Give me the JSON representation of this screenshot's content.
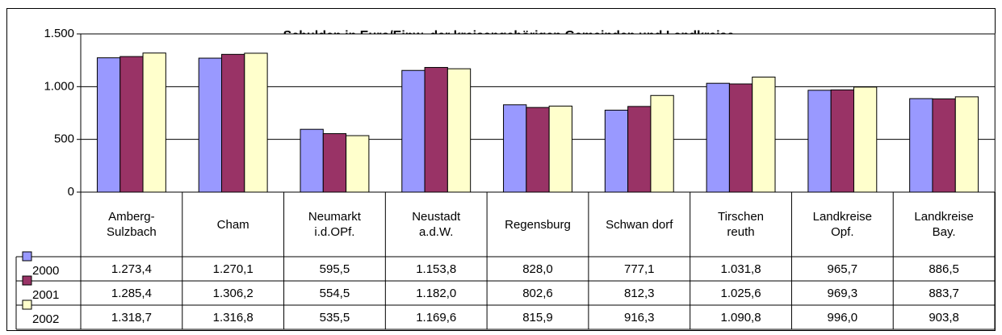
{
  "chart_data": {
    "type": "bar",
    "title": "Schulden in Euro/Einw. der kreisangehörigen Gemeinden und Landkreise",
    "categories": [
      "Amberg-\nSulzbach",
      "Cham",
      "Neumarkt\ni.d.OPf.",
      "Neustadt\na.d.W.",
      "Regensburg",
      "Schwan dorf",
      "Tirschen\nreuth",
      "Landkreise\nOpf.",
      "Landkreise\nBay."
    ],
    "series": [
      {
        "name": "2000",
        "color": "#9999ff",
        "values": [
          1273.4,
          1270.1,
          595.5,
          1153.8,
          828.0,
          777.1,
          1031.8,
          965.7,
          886.5
        ],
        "value_labels": [
          "1.273,4",
          "1.270,1",
          "595,5",
          "1.153,8",
          "828,0",
          "777,1",
          "1.031,8",
          "965,7",
          "886,5"
        ]
      },
      {
        "name": "2001",
        "color": "#993366",
        "values": [
          1285.4,
          1306.2,
          554.5,
          1182.0,
          802.6,
          812.3,
          1025.6,
          969.3,
          883.7
        ],
        "value_labels": [
          "1.285,4",
          "1.306,2",
          "554,5",
          "1.182,0",
          "802,6",
          "812,3",
          "1.025,6",
          "969,3",
          "883,7"
        ]
      },
      {
        "name": "2002",
        "color": "#ffffcc",
        "values": [
          1318.7,
          1316.8,
          535.5,
          1169.6,
          815.9,
          916.3,
          1090.8,
          996.0,
          903.8
        ],
        "value_labels": [
          "1.318,7",
          "1.316,8",
          "535,5",
          "1.169,6",
          "815,9",
          "916,3",
          "1.090,8",
          "996,0",
          "903,8"
        ]
      }
    ],
    "ylim": [
      0,
      1500
    ],
    "yticks": [
      0,
      500,
      {
        "value": 1000,
        "label": "1.000"
      },
      {
        "value": 1500,
        "label": "1.500"
      }
    ],
    "grid": true
  }
}
